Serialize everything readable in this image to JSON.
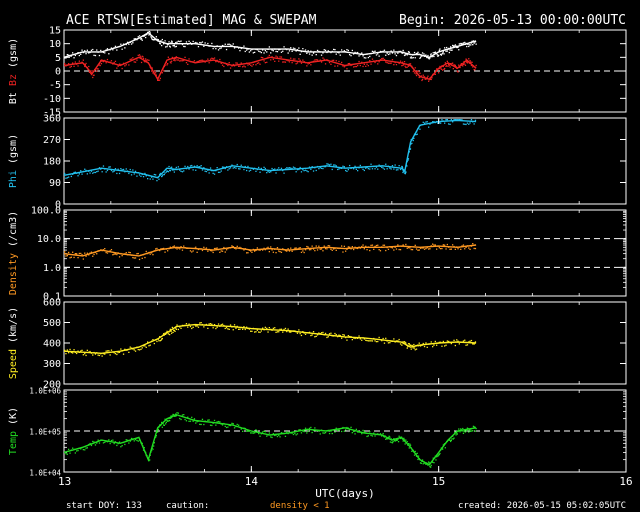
{
  "header": {
    "title": "ACE RTSW[Estimated] MAG & SWEPAM",
    "begin": "Begin: 2026-05-13 00:00:00UTC"
  },
  "footer": {
    "start_doy": "start DOY: 133",
    "caution": "caution:",
    "density_note": "density < 1",
    "created": "created: 2026-05-15 05:02:05UTC"
  },
  "colors": {
    "background": "#000000",
    "axes": "#ffffff",
    "bt": "#ffffff",
    "bz": "#ee2222",
    "phi": "#22c0ee",
    "density": "#ff9922",
    "speed": "#ffee22",
    "temp": "#22dd22"
  },
  "chart_data": {
    "type": "line",
    "xlabel": "UTC(days)",
    "x_ticks": [
      "13",
      "14",
      "15",
      "16"
    ],
    "xlim": [
      13,
      16
    ],
    "panels": [
      {
        "id": "mag",
        "ylabel_parts": [
          "Bt",
          "Bz",
          "(gsm)"
        ],
        "yticks": [
          "15",
          "10",
          "5",
          "0",
          "-5",
          "-10",
          "-15"
        ],
        "ylim": [
          -15,
          15
        ],
        "reference_line": 0,
        "series": [
          {
            "name": "Bt",
            "color_key": "bt",
            "x": [
              13.0,
              13.1,
              13.2,
              13.3,
              13.4,
              13.45,
              13.5,
              13.55,
              13.6,
              13.7,
              13.8,
              13.9,
              14.0,
              14.1,
              14.2,
              14.3,
              14.4,
              14.5,
              14.6,
              14.7,
              14.8,
              14.85,
              14.9,
              14.95,
              15.0,
              15.05,
              15.1,
              15.15,
              15.2
            ],
            "values": [
              5,
              7,
              7,
              9,
              12,
              14,
              11,
              10,
              10,
              10,
              9,
              9,
              8,
              8,
              8,
              7,
              7,
              7,
              6,
              7,
              7,
              6,
              6,
              5,
              7,
              8,
              9,
              10,
              11
            ]
          },
          {
            "name": "Bz",
            "color_key": "bz",
            "x": [
              13.0,
              13.1,
              13.15,
              13.2,
              13.3,
              13.4,
              13.45,
              13.5,
              13.55,
              13.6,
              13.7,
              13.8,
              13.9,
              14.0,
              14.1,
              14.2,
              14.3,
              14.4,
              14.5,
              14.6,
              14.7,
              14.8,
              14.85,
              14.9,
              14.95,
              15.0,
              15.05,
              15.1,
              15.15,
              15.2
            ],
            "values": [
              2,
              3,
              -1,
              4,
              2,
              5,
              3,
              -3,
              4,
              5,
              3,
              4,
              2,
              3,
              5,
              4,
              3,
              4,
              2,
              3,
              4,
              3,
              2,
              -2,
              -3,
              1,
              3,
              1,
              4,
              1
            ]
          }
        ]
      },
      {
        "id": "phi",
        "ylabel_parts": [
          "Phi",
          "(gsm)"
        ],
        "yticks": [
          "360",
          "270",
          "180",
          "90",
          "0"
        ],
        "ylim": [
          0,
          360
        ],
        "series": [
          {
            "name": "Phi",
            "color_key": "phi",
            "x": [
              13.0,
              13.1,
              13.2,
              13.3,
              13.4,
              13.5,
              13.55,
              13.6,
              13.7,
              13.8,
              13.9,
              14.0,
              14.1,
              14.2,
              14.3,
              14.4,
              14.5,
              14.6,
              14.7,
              14.8,
              14.82,
              14.85,
              14.9,
              15.0,
              15.1,
              15.2
            ],
            "values": [
              120,
              135,
              150,
              140,
              130,
              110,
              150,
              145,
              155,
              140,
              160,
              150,
              140,
              145,
              150,
              160,
              150,
              155,
              160,
              150,
              140,
              260,
              330,
              345,
              350,
              345
            ]
          }
        ]
      },
      {
        "id": "density",
        "ylabel_parts": [
          "Density",
          "(/cm3)"
        ],
        "yticks": [
          "100.0",
          "10.0",
          "1.0",
          "0.1"
        ],
        "ylim": [
          0.1,
          100
        ],
        "log": true,
        "reference_lines": [
          10,
          1
        ],
        "series": [
          {
            "name": "Density",
            "color_key": "density",
            "x": [
              13.0,
              13.1,
              13.2,
              13.3,
              13.4,
              13.5,
              13.6,
              13.7,
              13.8,
              13.9,
              14.0,
              14.1,
              14.2,
              14.3,
              14.4,
              14.5,
              14.6,
              14.7,
              14.8,
              14.9,
              15.0,
              15.1,
              15.2
            ],
            "values": [
              3,
              2.5,
              4,
              3,
              2.5,
              4,
              5,
              4.5,
              4,
              5,
              4,
              4.5,
              4,
              4.5,
              5,
              4.5,
              5,
              5,
              5.5,
              5,
              5.5,
              5,
              6
            ]
          }
        ]
      },
      {
        "id": "speed",
        "ylabel_parts": [
          "Speed",
          "(km/s)"
        ],
        "yticks": [
          "600",
          "500",
          "400",
          "300",
          "200"
        ],
        "ylim": [
          200,
          600
        ],
        "series": [
          {
            "name": "Speed",
            "color_key": "speed",
            "x": [
              13.0,
              13.1,
              13.2,
              13.3,
              13.4,
              13.5,
              13.55,
              13.6,
              13.7,
              13.8,
              13.9,
              14.0,
              14.1,
              14.2,
              14.3,
              14.4,
              14.5,
              14.6,
              14.7,
              14.8,
              14.85,
              14.9,
              15.0,
              15.1,
              15.2
            ],
            "values": [
              360,
              355,
              350,
              360,
              380,
              420,
              450,
              480,
              490,
              485,
              480,
              470,
              465,
              460,
              450,
              440,
              430,
              425,
              415,
              405,
              380,
              390,
              400,
              405,
              400
            ]
          }
        ]
      },
      {
        "id": "temp",
        "ylabel_parts": [
          "Temp",
          "(K)"
        ],
        "yticks": [
          "1.0E+06",
          "1.0E+05",
          "1.0E+04"
        ],
        "ylim": [
          10000,
          1000000
        ],
        "log": true,
        "reference_line": 100000,
        "series": [
          {
            "name": "Temp",
            "color_key": "temp",
            "x": [
              13.0,
              13.1,
              13.2,
              13.3,
              13.4,
              13.45,
              13.5,
              13.55,
              13.6,
              13.7,
              13.8,
              13.9,
              14.0,
              14.1,
              14.2,
              14.3,
              14.4,
              14.5,
              14.6,
              14.7,
              14.75,
              14.8,
              14.85,
              14.9,
              14.95,
              15.0,
              15.05,
              15.1,
              15.15,
              15.2
            ],
            "values": [
              30000,
              40000,
              60000,
              50000,
              70000,
              20000,
              120000,
              200000,
              250000,
              180000,
              160000,
              140000,
              100000,
              80000,
              90000,
              110000,
              100000,
              120000,
              90000,
              80000,
              60000,
              70000,
              40000,
              20000,
              15000,
              30000,
              60000,
              100000,
              110000,
              120000
            ]
          }
        ]
      }
    ]
  }
}
